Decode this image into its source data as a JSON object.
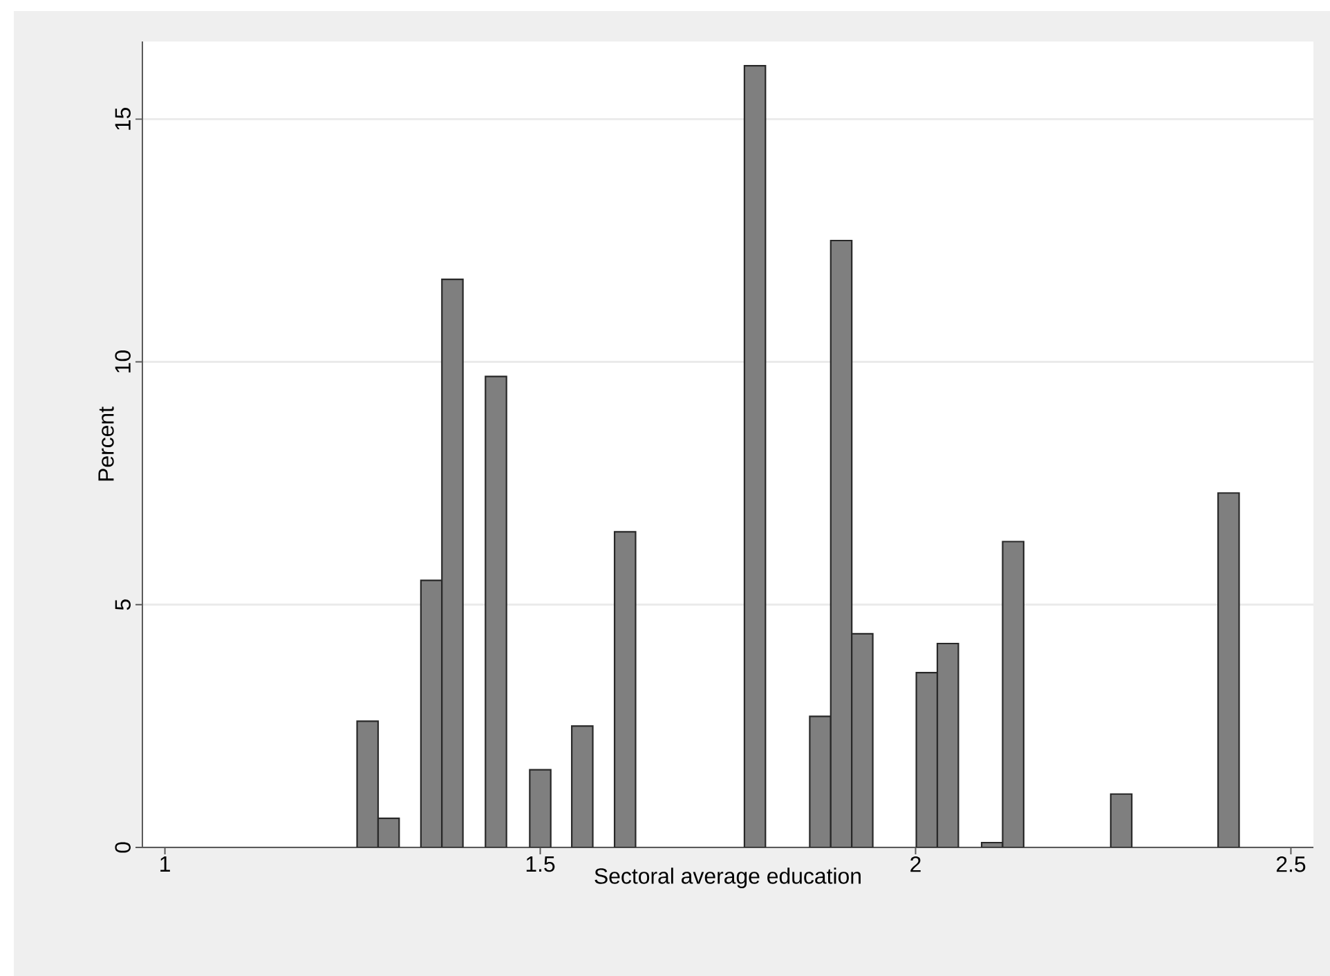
{
  "chart_data": {
    "type": "histogram",
    "xlabel": "Sectoral average education",
    "ylabel": "Percent",
    "bins": [
      1.256,
      1.284,
      1.312,
      1.341,
      1.369,
      1.397,
      1.427,
      1.455,
      1.486,
      1.514,
      1.542,
      1.57,
      1.599,
      1.627,
      1.772,
      1.8,
      1.859,
      1.887,
      1.915,
      1.943,
      2.001,
      2.029,
      2.057,
      2.088,
      2.116,
      2.144,
      2.26,
      2.288,
      2.403,
      2.431
    ],
    "values": [
      2.6,
      0.6,
      0,
      5.5,
      11.7,
      0,
      9.7,
      0,
      1.6,
      0,
      2.5,
      0,
      6.5,
      0,
      16.1,
      0,
      2.7,
      12.5,
      4.4,
      0,
      3.6,
      4.2,
      0,
      0.1,
      6.3,
      0,
      1.1,
      0,
      7.3
    ],
    "color": "#7f7f7f",
    "xlim": [
      0.97,
      2.53
    ],
    "ylim": [
      0,
      16.6
    ],
    "xticks": [
      1,
      1.5,
      2,
      2.5
    ],
    "yticks": [
      0,
      5,
      10,
      15
    ],
    "grid": "y"
  }
}
